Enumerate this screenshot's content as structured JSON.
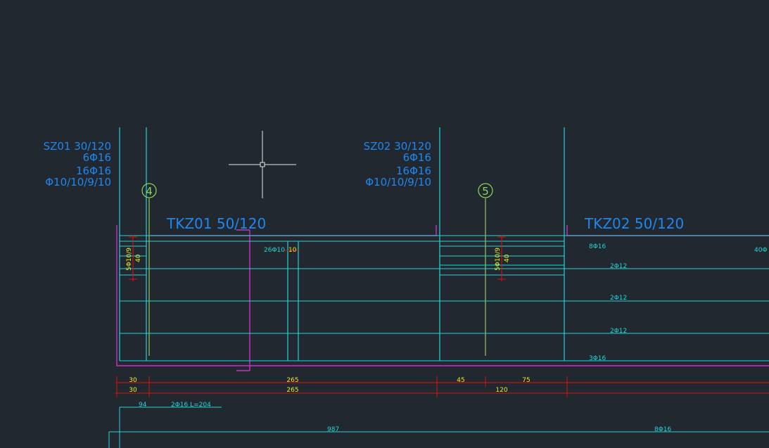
{
  "drawing": {
    "colors": {
      "background": "#212830",
      "column": "#22d4d4",
      "beam_outline": "#c830c8",
      "dimension": "#e01010",
      "label": "#1e88f0",
      "dim_text": "#e8e82a",
      "axis": "#8ad85a"
    },
    "columns": [
      {
        "name": "SZ01 30/120",
        "line1": "6Φ16",
        "line2": "16Φ16",
        "line3": "Φ10/10/9/10"
      },
      {
        "name": "SZ02 30/120",
        "line1": "6Φ16",
        "line2": "16Φ16",
        "line3": "Φ10/10/9/10"
      }
    ],
    "axes": [
      "4",
      "5"
    ],
    "beams": [
      "TKZ01 50/120",
      "TKZ02 50/120"
    ],
    "rebar_labels": {
      "r1": "26Φ10",
      "r1b": "10",
      "stirrup_a": "5Φ10/9",
      "stirrup_a_dim": "40",
      "stirrup_b": "5Φ10/9",
      "stirrup_b_dim": "40",
      "top": "8Φ16",
      "top_right": "40Φ",
      "mid1": "2Φ12",
      "mid2": "2Φ12",
      "mid3": "2Φ12",
      "bottom": "3Φ16"
    },
    "dimensions": {
      "row1": [
        "30",
        "265",
        "45",
        "75"
      ],
      "row2": [
        "30",
        "265",
        "120"
      ]
    },
    "bottom": {
      "d1": "94",
      "bar": "2Φ16 L=204",
      "length": "987",
      "bar2": "8Φ16"
    }
  }
}
